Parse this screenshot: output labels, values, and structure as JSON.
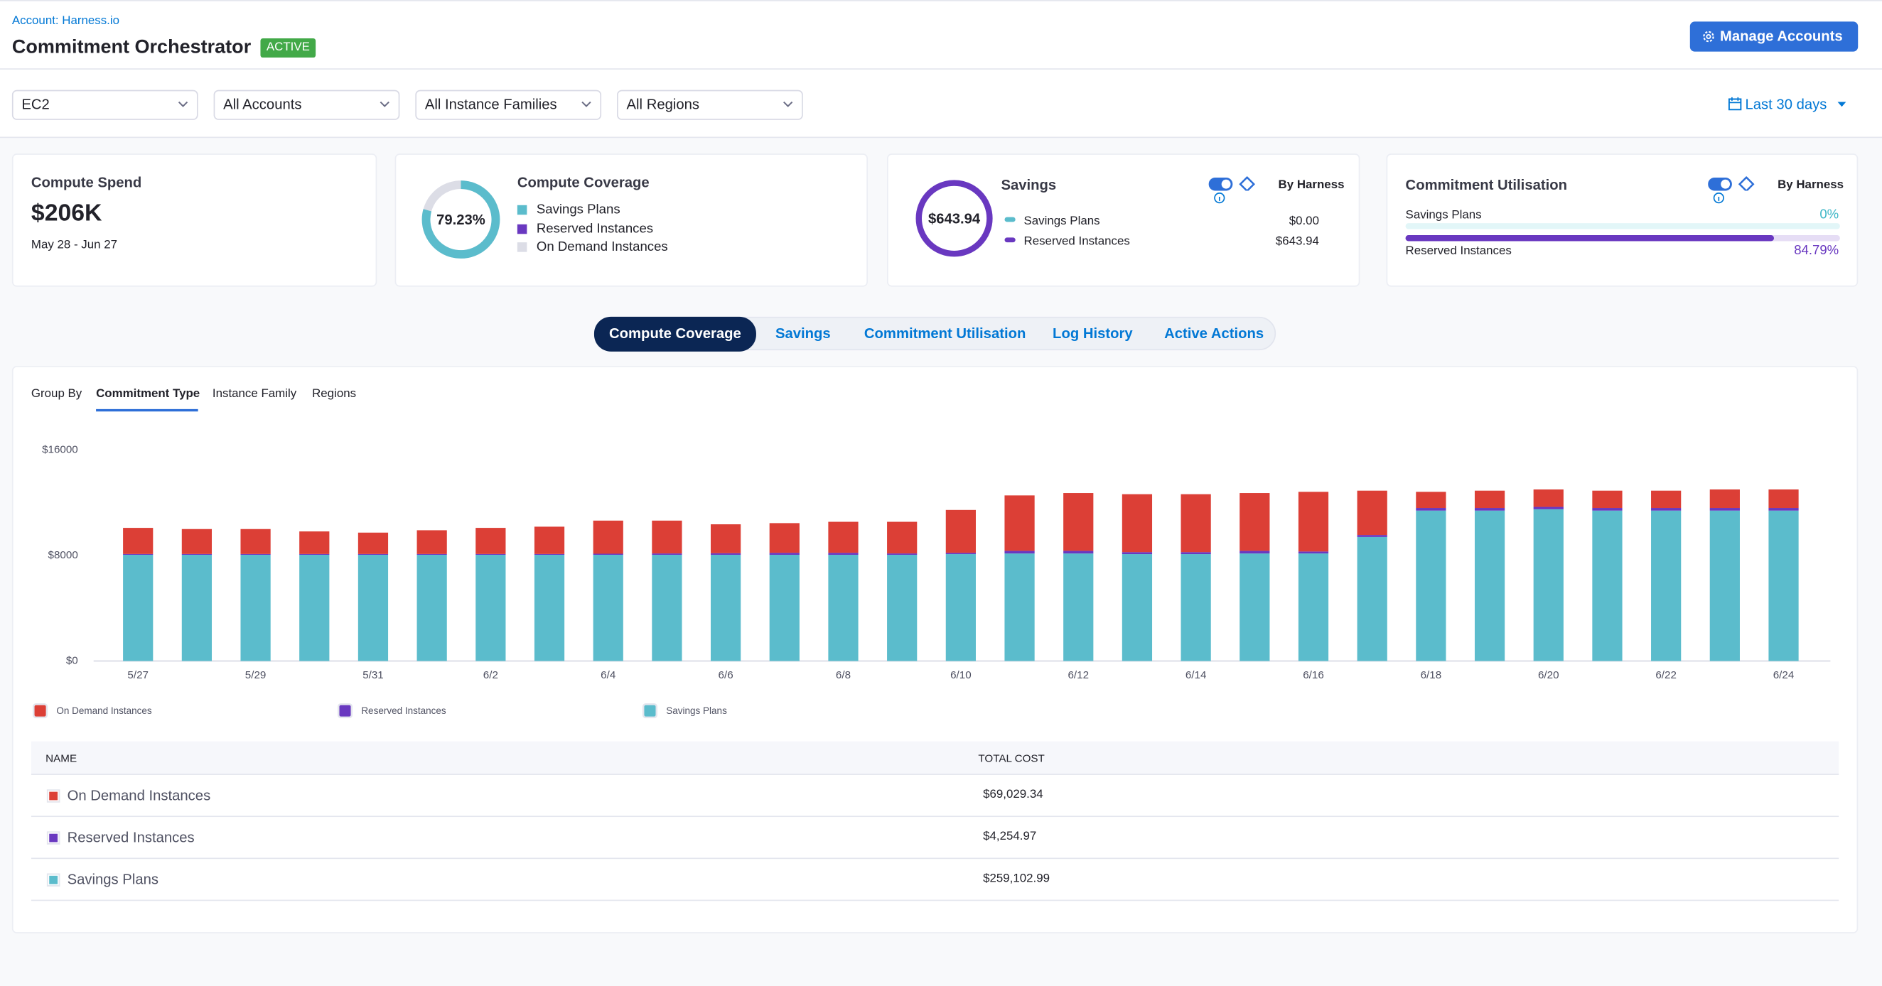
{
  "header": {
    "account": "Account: Harness.io",
    "title": "Commitment Orchestrator",
    "badge": "ACTIVE",
    "button": "Manage Accounts"
  },
  "filters": [
    "EC2",
    "All Accounts",
    "All Instance Families",
    "All Regions"
  ],
  "date_range": "Last 30 days",
  "cards": {
    "spend": {
      "label": "Compute Spend",
      "value": "$206K",
      "period": "May 28 - Jun 27"
    },
    "coverage": {
      "label": "Compute Coverage",
      "percent": {
        "value": 79.23,
        "label": "79.23%"
      },
      "legend": [
        "Savings Plans",
        "Reserved Instances",
        "On Demand Instances"
      ]
    },
    "savings": {
      "label": "Savings",
      "total": "$643.94",
      "toggle": "By Harness",
      "rows": [
        {
          "name": "Savings Plans",
          "value": "$0.00"
        },
        {
          "name": "Reserved Instances",
          "value": "$643.94"
        }
      ]
    },
    "utilisation": {
      "label": "Commitment Utilisation",
      "toggle": "By Harness",
      "rows": [
        {
          "name": "Savings Plans",
          "value": 0,
          "label": "0%"
        },
        {
          "name": "Reserved Instances",
          "value": 84.79,
          "label": "84.79%"
        }
      ]
    }
  },
  "tabs": [
    "Compute Coverage",
    "Savings",
    "Commitment Utilisation",
    "Log History",
    "Active Actions"
  ],
  "group_by": {
    "label": "Group By",
    "options": [
      "Commitment Type",
      "Instance Family",
      "Regions"
    ]
  },
  "chart_data": {
    "type": "bar",
    "stacked": true,
    "categories": [
      "5/27",
      null,
      "5/29",
      null,
      "5/31",
      null,
      "6/2",
      null,
      "6/4",
      null,
      "6/6",
      null,
      "6/8",
      null,
      "6/10",
      null,
      "6/12",
      null,
      "6/14",
      null,
      "6/16",
      null,
      "6/18",
      null,
      "6/20",
      null,
      "6/22",
      null,
      "6/24"
    ],
    "series": [
      {
        "name": "On Demand Instances",
        "color": "#dc3f36",
        "values": [
          1980,
          1890,
          1890,
          1710,
          1620,
          1800,
          1980,
          2070,
          2510,
          2490,
          2190,
          2250,
          2350,
          2400,
          3250,
          4200,
          4380,
          4390,
          4390,
          4380,
          4520,
          3360,
          1220,
          1310,
          1320,
          1310,
          1310,
          1400,
          1400
        ]
      },
      {
        "name": "Reserved Instances",
        "color": "#6938c0",
        "values": [
          60,
          60,
          60,
          60,
          60,
          60,
          60,
          60,
          80,
          100,
          120,
          150,
          150,
          100,
          100,
          200,
          200,
          150,
          150,
          200,
          150,
          150,
          200,
          200,
          180,
          200,
          200,
          200,
          200
        ]
      },
      {
        "name": "Savings Plans",
        "color": "#5bbccc",
        "values": [
          8050,
          8050,
          8050,
          8050,
          8050,
          8050,
          8050,
          8050,
          8050,
          8050,
          8050,
          8050,
          8050,
          8050,
          8100,
          8150,
          8150,
          8100,
          8100,
          8150,
          8150,
          9400,
          11400,
          11400,
          11500,
          11400,
          11400,
          11400,
          11400
        ]
      }
    ],
    "ylim": [
      0,
      16000
    ],
    "yticks": [
      {
        "value": 0,
        "label": "$0"
      },
      {
        "value": 8000,
        "label": "$8000"
      },
      {
        "value": 16000,
        "label": "$16000"
      }
    ],
    "grid": false
  },
  "table": {
    "columns": [
      "NAME",
      "TOTAL COST"
    ],
    "rows": [
      [
        "On Demand Instances",
        "$69,029.34"
      ],
      [
        "Reserved Instances",
        "$4,254.97"
      ],
      [
        "Savings Plans",
        "$259,102.99"
      ]
    ]
  }
}
